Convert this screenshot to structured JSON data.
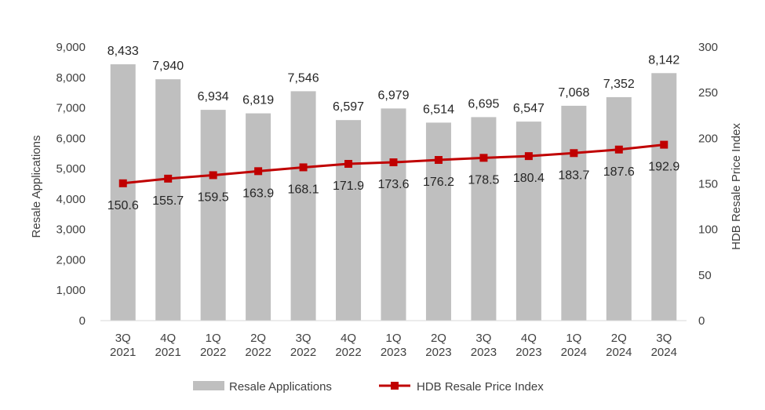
{
  "chart_data": {
    "type": "bar-line-combo",
    "categories": [
      "3Q\n2021",
      "4Q\n2021",
      "1Q\n2022",
      "2Q\n2022",
      "3Q\n2022",
      "4Q\n2022",
      "1Q\n2023",
      "2Q\n2023",
      "3Q\n2023",
      "4Q\n2023",
      "1Q\n2024",
      "2Q\n2024",
      "3Q\n2024"
    ],
    "series": [
      {
        "name": "Resale Applications",
        "kind": "bar",
        "axis": "left",
        "color": "#BFBFBF",
        "values": [
          8433,
          7940,
          6934,
          6819,
          7546,
          6597,
          6979,
          6514,
          6695,
          6547,
          7068,
          7352,
          8142
        ],
        "labels": [
          "8,433",
          "7,940",
          "6,934",
          "6,819",
          "7,546",
          "6,597",
          "6,979",
          "6,514",
          "6,695",
          "6,547",
          "7,068",
          "7,352",
          "8,142"
        ]
      },
      {
        "name": "HDB Resale Price Index",
        "kind": "line",
        "axis": "right",
        "color": "#C00000",
        "values": [
          150.6,
          155.7,
          159.5,
          163.9,
          168.1,
          171.9,
          173.6,
          176.2,
          178.5,
          180.4,
          183.7,
          187.6,
          192.9
        ],
        "labels": [
          "150.6",
          "155.7",
          "159.5",
          "163.9",
          "168.1",
          "171.9",
          "173.6",
          "176.2",
          "178.5",
          "180.4",
          "183.7",
          "187.6",
          "192.9"
        ]
      }
    ],
    "ylabel": "Resale Applications",
    "y2label": "HDB Resale Price Index",
    "ylim": [
      0,
      9000
    ],
    "y2lim": [
      0,
      300
    ],
    "yticks": [
      0,
      1000,
      2000,
      3000,
      4000,
      5000,
      6000,
      7000,
      8000,
      9000
    ],
    "yticklabels": [
      "0",
      "1,000",
      "2,000",
      "3,000",
      "4,000",
      "5,000",
      "6,000",
      "7,000",
      "8,000",
      "9,000"
    ],
    "y2ticks": [
      0,
      50,
      100,
      150,
      200,
      250,
      300
    ],
    "y2ticklabels": [
      "0",
      "50",
      "100",
      "150",
      "200",
      "250",
      "300"
    ],
    "grid": false,
    "legend_position": "bottom"
  }
}
